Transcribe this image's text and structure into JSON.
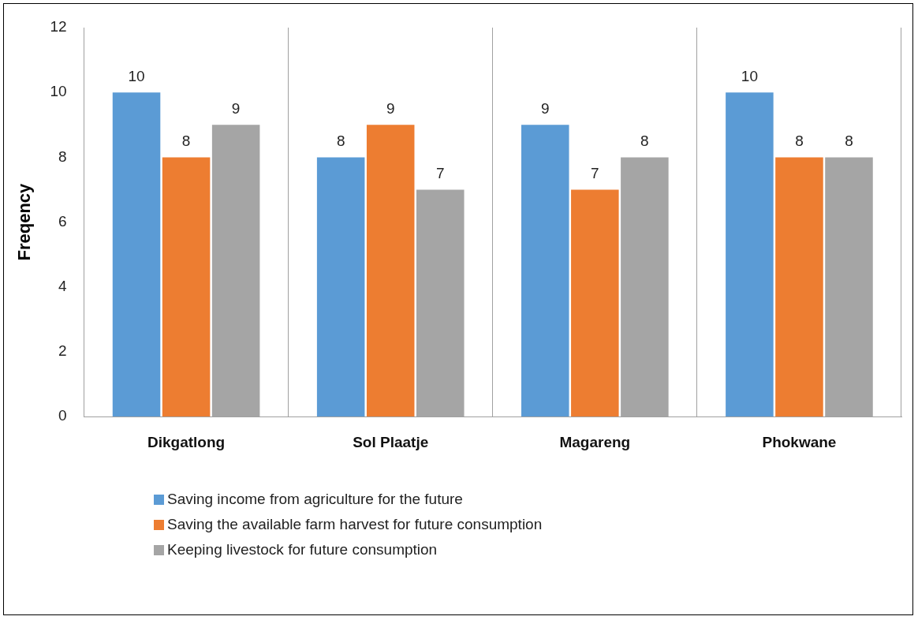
{
  "chart_data": {
    "type": "bar",
    "ylabel": "Freqency",
    "categories": [
      "Dikgatlong",
      "Sol Plaatje",
      "Magareng",
      "Phokwane"
    ],
    "series": [
      {
        "name": "Saving income from agriculture for the future",
        "color": "#5b9bd5",
        "values": [
          10,
          8,
          9,
          10
        ]
      },
      {
        "name": "Saving the available farm harvest for future consumption",
        "color": "#ed7d31",
        "values": [
          8,
          9,
          7,
          8
        ]
      },
      {
        "name": "Keeping livestock for future consumption",
        "color": "#a5a5a5",
        "values": [
          9,
          7,
          8,
          8
        ]
      }
    ],
    "ylim": [
      0,
      12
    ],
    "yticks": [
      0,
      2,
      4,
      6,
      8,
      10,
      12
    ],
    "grid": "x",
    "legend": "bottom",
    "data_labels": true
  }
}
